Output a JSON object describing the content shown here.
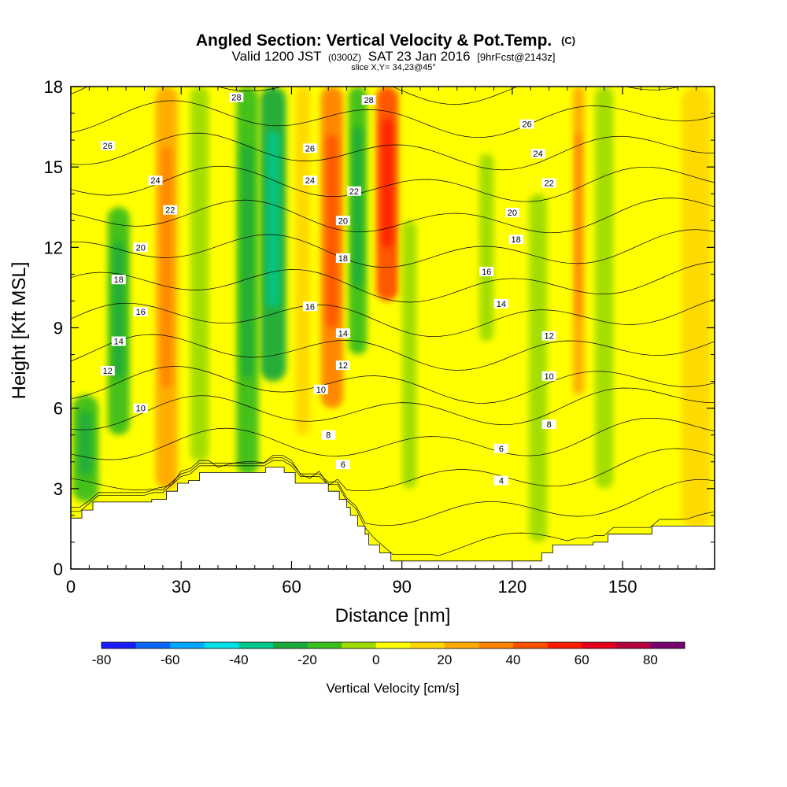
{
  "header": {
    "title_main": "Angled Section: Vertical Velocity & Pot.Temp.",
    "title_suffix": "(C)",
    "valid_prefix": "Valid 1200 JST",
    "valid_zulu": "(0300Z)",
    "valid_date": "SAT 23 Jan 2016",
    "forecast_info": "[9hrFcst@2143z]",
    "slice_info": "slice X,Y= 34,23@45°"
  },
  "chart_data": {
    "type": "heatmap",
    "xlabel": "Distance [nm]",
    "ylabel": "Height [Kft MSL]",
    "xlim": [
      0,
      175
    ],
    "ylim": [
      0,
      18
    ],
    "x_ticks": [
      0,
      30,
      60,
      90,
      120,
      150
    ],
    "y_ticks": [
      0,
      3,
      6,
      9,
      12,
      15,
      18
    ],
    "colorbar": {
      "label": "Vertical Velocity [cm/s]",
      "levels": [
        -80,
        -70,
        -60,
        -50,
        -40,
        -30,
        -20,
        -10,
        0,
        10,
        20,
        30,
        40,
        50,
        60,
        70,
        80,
        90
      ],
      "tick_labels": [
        "-80",
        "-60",
        "-40",
        "-20",
        "0",
        "20",
        "40",
        "60",
        "80"
      ],
      "tick_values": [
        -80,
        -60,
        -40,
        -20,
        0,
        20,
        40,
        60,
        80
      ],
      "colors": [
        "#1a1aff",
        "#0a66ff",
        "#00a8ff",
        "#00e0e6",
        "#00c88c",
        "#1aaa3c",
        "#3cbe1e",
        "#a0dc00",
        "#ffff00",
        "#ffd800",
        "#ffaa00",
        "#ff8200",
        "#ff5000",
        "#ff1a00",
        "#e6001e",
        "#b4003c",
        "#78006e"
      ]
    },
    "vertical_velocity_bands": [
      {
        "x_center": 4,
        "width": 7,
        "y_bottom": 2.5,
        "y_top": 6.5,
        "value": -20
      },
      {
        "x_center": 13,
        "width": 6,
        "y_bottom": 5,
        "y_top": 13.5,
        "value": -20
      },
      {
        "x_center": 26,
        "width": 6,
        "y_bottom": 3,
        "y_top": 18,
        "value": 20
      },
      {
        "x_center": 35,
        "width": 5,
        "y_bottom": 4,
        "y_top": 18,
        "value": -10
      },
      {
        "x_center": 48,
        "width": 6,
        "y_bottom": 3.5,
        "y_top": 18,
        "value": -20
      },
      {
        "x_center": 55,
        "width": 7,
        "y_bottom": 7,
        "y_top": 18,
        "value": -30
      },
      {
        "x_center": 63,
        "width": 4,
        "y_bottom": 5,
        "y_top": 18,
        "value": 10
      },
      {
        "x_center": 71,
        "width": 6,
        "y_bottom": 6,
        "y_top": 18,
        "value": 30
      },
      {
        "x_center": 78,
        "width": 5,
        "y_bottom": 8,
        "y_top": 18,
        "value": -20
      },
      {
        "x_center": 86,
        "width": 6,
        "y_bottom": 10,
        "y_top": 18,
        "value": 40
      },
      {
        "x_center": 92,
        "width": 4,
        "y_bottom": 3,
        "y_top": 13,
        "value": -10
      },
      {
        "x_center": 113,
        "width": 4,
        "y_bottom": 8.5,
        "y_top": 15.5,
        "value": -10
      },
      {
        "x_center": 127,
        "width": 5,
        "y_bottom": 1,
        "y_top": 14,
        "value": -10
      },
      {
        "x_center": 138,
        "width": 3,
        "y_bottom": 6.5,
        "y_top": 18,
        "value": 20
      },
      {
        "x_center": 145,
        "width": 5,
        "y_bottom": 3,
        "y_top": 18,
        "value": -10
      },
      {
        "x_center": 170,
        "width": 8,
        "y_bottom": 1.5,
        "y_top": 18,
        "value": 10
      }
    ],
    "potential_temperature_labels": [
      {
        "text": "28",
        "x": 45,
        "y": 17.6
      },
      {
        "text": "28",
        "x": 81,
        "y": 17.5
      },
      {
        "text": "26",
        "x": 10,
        "y": 15.8
      },
      {
        "text": "26",
        "x": 65,
        "y": 15.7
      },
      {
        "text": "26",
        "x": 124,
        "y": 16.6
      },
      {
        "text": "24",
        "x": 23,
        "y": 14.5
      },
      {
        "text": "24",
        "x": 65,
        "y": 14.5
      },
      {
        "text": "24",
        "x": 127,
        "y": 15.5
      },
      {
        "text": "22",
        "x": 27,
        "y": 13.4
      },
      {
        "text": "22",
        "x": 77,
        "y": 14.1
      },
      {
        "text": "22",
        "x": 130,
        "y": 14.4
      },
      {
        "text": "20",
        "x": 19,
        "y": 12
      },
      {
        "text": "20",
        "x": 74,
        "y": 13
      },
      {
        "text": "20",
        "x": 120,
        "y": 13.3
      },
      {
        "text": "18",
        "x": 13,
        "y": 10.8
      },
      {
        "text": "18",
        "x": 74,
        "y": 11.6
      },
      {
        "text": "18",
        "x": 121,
        "y": 12.3
      },
      {
        "text": "16",
        "x": 19,
        "y": 9.6
      },
      {
        "text": "16",
        "x": 65,
        "y": 9.8
      },
      {
        "text": "16",
        "x": 113,
        "y": 11.1
      },
      {
        "text": "14",
        "x": 13,
        "y": 8.5
      },
      {
        "text": "14",
        "x": 74,
        "y": 8.8
      },
      {
        "text": "14",
        "x": 117,
        "y": 9.9
      },
      {
        "text": "12",
        "x": 10,
        "y": 7.4
      },
      {
        "text": "12",
        "x": 74,
        "y": 7.6
      },
      {
        "text": "12",
        "x": 130,
        "y": 8.7
      },
      {
        "text": "10",
        "x": 19,
        "y": 6
      },
      {
        "text": "10",
        "x": 68,
        "y": 6.7
      },
      {
        "text": "10",
        "x": 130,
        "y": 7.2
      },
      {
        "text": "8",
        "x": 70,
        "y": 5
      },
      {
        "text": "8",
        "x": 130,
        "y": 5.4
      },
      {
        "text": "6",
        "x": 74,
        "y": 3.9
      },
      {
        "text": "6",
        "x": 117,
        "y": 4.5
      },
      {
        "text": "4",
        "x": 117,
        "y": 3.3
      }
    ],
    "terrain_profile": [
      [
        0,
        1.9
      ],
      [
        3,
        1.9
      ],
      [
        3,
        2.2
      ],
      [
        6,
        2.2
      ],
      [
        6,
        2.5
      ],
      [
        14,
        2.5
      ],
      [
        22,
        2.5
      ],
      [
        22,
        2.6
      ],
      [
        26,
        2.6
      ],
      [
        26,
        2.9
      ],
      [
        29,
        2.9
      ],
      [
        29,
        3.2
      ],
      [
        32,
        3.2
      ],
      [
        32,
        3.3
      ],
      [
        35,
        3.3
      ],
      [
        35,
        3.6
      ],
      [
        53,
        3.6
      ],
      [
        53,
        3.8
      ],
      [
        58,
        3.8
      ],
      [
        58,
        3.6
      ],
      [
        61,
        3.6
      ],
      [
        61,
        3.2
      ],
      [
        70,
        3.2
      ],
      [
        70,
        2.9
      ],
      [
        73,
        2.9
      ],
      [
        73,
        2.6
      ],
      [
        75,
        2.6
      ],
      [
        75,
        2.3
      ],
      [
        76,
        2.3
      ],
      [
        76,
        2.0
      ],
      [
        78,
        2.0
      ],
      [
        78,
        1.6
      ],
      [
        80,
        1.6
      ],
      [
        80,
        1.3
      ],
      [
        81,
        1.3
      ],
      [
        81,
        0.9
      ],
      [
        84,
        0.9
      ],
      [
        84,
        0.6
      ],
      [
        87,
        0.6
      ],
      [
        87,
        0.3
      ],
      [
        128,
        0.3
      ],
      [
        128,
        0.6
      ],
      [
        131,
        0.6
      ],
      [
        131,
        0.9
      ],
      [
        142,
        0.9
      ],
      [
        142,
        1.0
      ],
      [
        146,
        1.0
      ],
      [
        146,
        1.3
      ],
      [
        154,
        1.3
      ],
      [
        154,
        1.3
      ],
      [
        158,
        1.3
      ],
      [
        158,
        1.6
      ],
      [
        175,
        1.6
      ]
    ]
  }
}
